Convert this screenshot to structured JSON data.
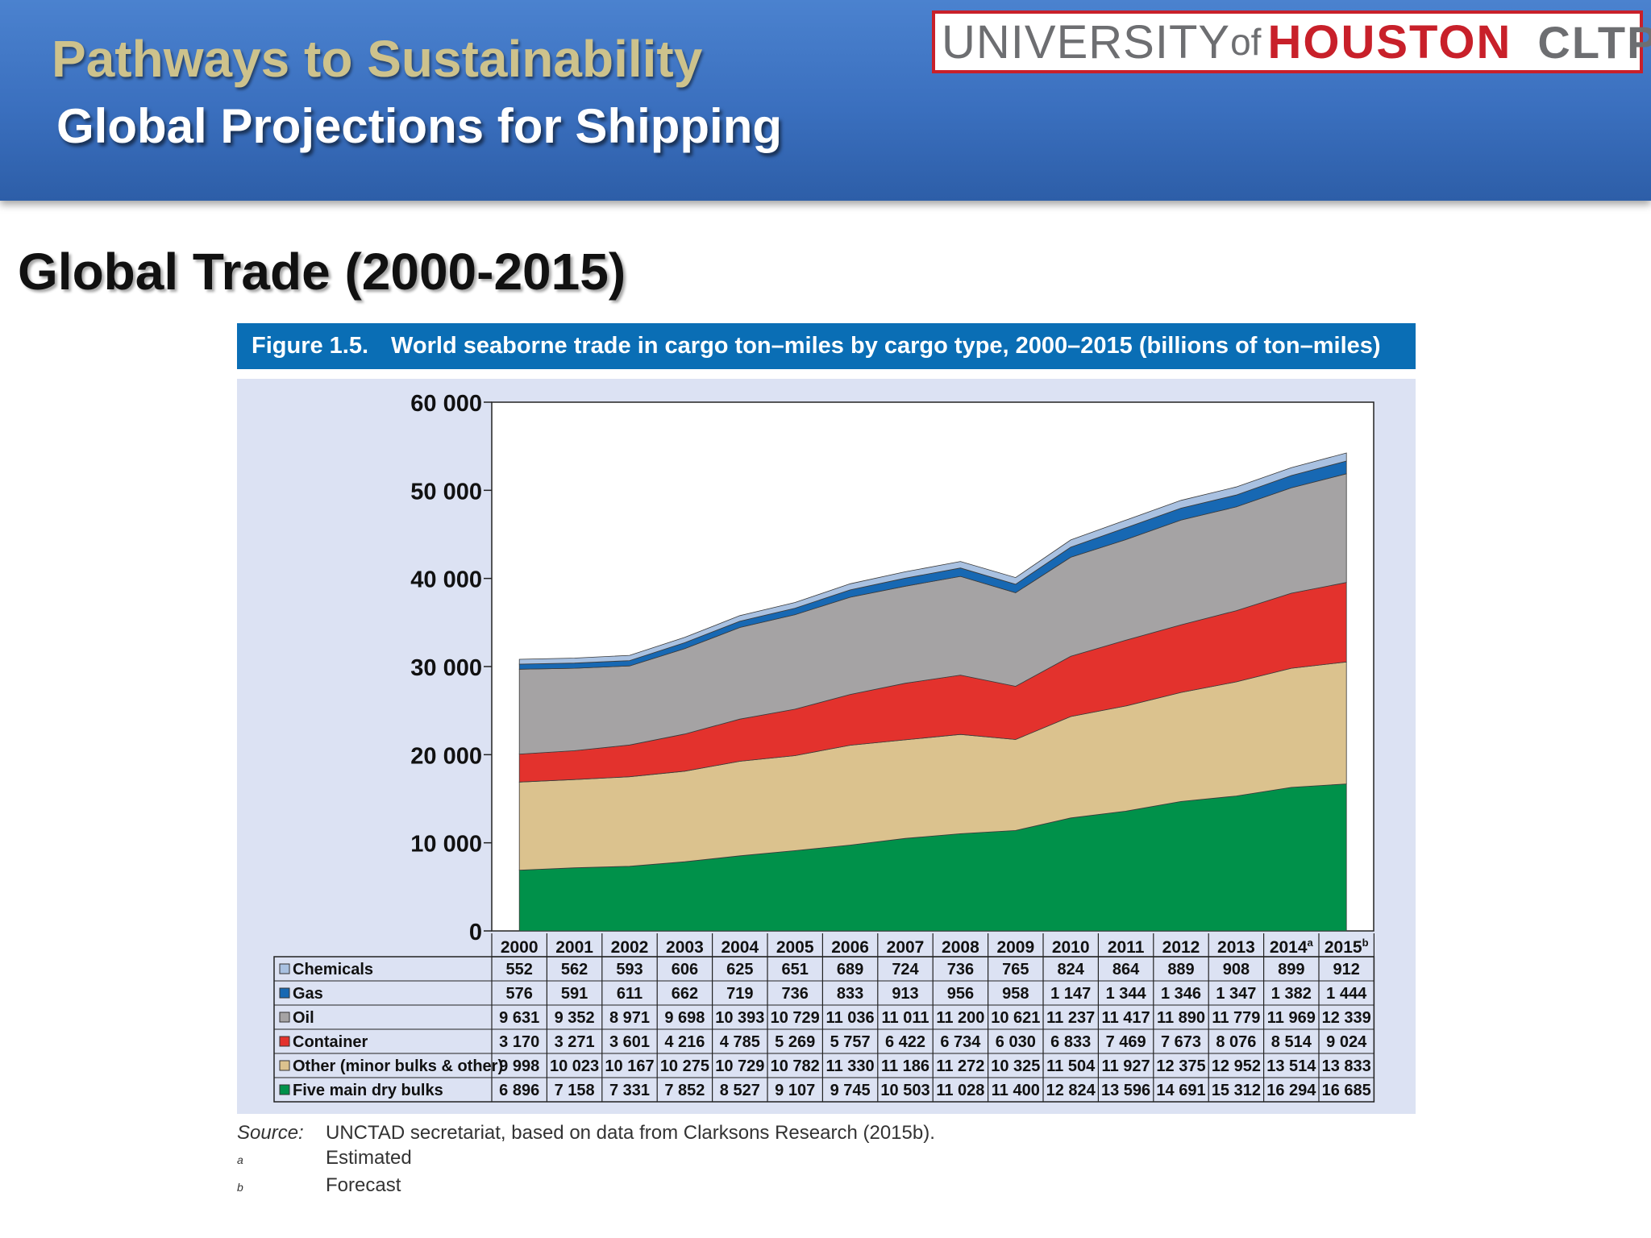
{
  "header": {
    "subtitle": "Pathways to Sustainability",
    "title": "Global Projections for Shipping"
  },
  "logo": {
    "university": "UNIVERSITY",
    "of": "of",
    "houston": "HOUSTON",
    "unit": "CLTP",
    "colors": {
      "red": "#c8202a",
      "gray": "#6d6e71"
    }
  },
  "slide": {
    "heading": "Global Trade (2000-2015)"
  },
  "figure": {
    "number": "Figure 1.5.",
    "title": "World seaborne trade in cargo ton–miles by cargo type, 2000–2015 (billions of ton–miles)"
  },
  "chart_data": {
    "type": "area",
    "stacked": true,
    "ylim": [
      0,
      60000
    ],
    "y_ticks": [
      "0",
      "10 000",
      "20 000",
      "30 000",
      "40 000",
      "50 000",
      "60 000"
    ],
    "categories": [
      "2000",
      "2001",
      "2002",
      "2003",
      "2004",
      "2005",
      "2006",
      "2007",
      "2008",
      "2009",
      "2010",
      "2011",
      "2012",
      "2013",
      "2014",
      "2015"
    ],
    "category_footnotes": [
      "",
      "",
      "",
      "",
      "",
      "",
      "",
      "",
      "",
      "",
      "",
      "",
      "",
      "",
      "a",
      "b"
    ],
    "grid": false,
    "legend_placement": "table-left",
    "series": [
      {
        "name": "Five main dry bulks",
        "color": "#00914a",
        "values": [
          6896,
          7158,
          7331,
          7852,
          8527,
          9107,
          9745,
          10503,
          11028,
          11400,
          12824,
          13596,
          14691,
          15312,
          16294,
          16685
        ],
        "labels": [
          "6 896",
          "7 158",
          "7 331",
          "7 852",
          "8 527",
          "9 107",
          "9 745",
          "10 503",
          "11 028",
          "11 400",
          "12 824",
          "13 596",
          "14 691",
          "15 312",
          "16 294",
          "16 685"
        ]
      },
      {
        "name": "Other (minor bulks & other)",
        "color": "#dbc28e",
        "values": [
          9998,
          10023,
          10167,
          10275,
          10729,
          10782,
          11330,
          11186,
          11272,
          10325,
          11504,
          11927,
          12375,
          12952,
          13514,
          13833
        ],
        "labels": [
          "9 998",
          "10 023",
          "10 167",
          "10 275",
          "10 729",
          "10 782",
          "11 330",
          "11 186",
          "11 272",
          "10 325",
          "11 504",
          "11 927",
          "12 375",
          "12 952",
          "13 514",
          "13 833"
        ]
      },
      {
        "name": "Container",
        "color": "#e3322d",
        "values": [
          3170,
          3271,
          3601,
          4216,
          4785,
          5269,
          5757,
          6422,
          6734,
          6030,
          6833,
          7469,
          7673,
          8076,
          8514,
          9024
        ],
        "labels": [
          "3 170",
          "3 271",
          "3 601",
          "4 216",
          "4 785",
          "5 269",
          "5 757",
          "6 422",
          "6 734",
          "6 030",
          "6 833",
          "7 469",
          "7 673",
          "8 076",
          "8 514",
          "9 024"
        ]
      },
      {
        "name": "Oil",
        "color": "#a5a3a4",
        "values": [
          9631,
          9352,
          8971,
          9698,
          10393,
          10729,
          11036,
          11011,
          11200,
          10621,
          11237,
          11417,
          11890,
          11779,
          11969,
          12339
        ],
        "labels": [
          "9 631",
          "9 352",
          "8 971",
          "9 698",
          "10 393",
          "10 729",
          "11 036",
          "11 011",
          "11 200",
          "10 621",
          "11 237",
          "11 417",
          "11 890",
          "11 779",
          "11 969",
          "12 339"
        ]
      },
      {
        "name": "Gas",
        "color": "#1768b3",
        "values": [
          576,
          591,
          611,
          662,
          719,
          736,
          833,
          913,
          956,
          958,
          1147,
          1344,
          1346,
          1347,
          1382,
          1444
        ],
        "labels": [
          "576",
          "591",
          "611",
          "662",
          "719",
          "736",
          "833",
          "913",
          "956",
          "958",
          "1 147",
          "1 344",
          "1 346",
          "1 347",
          "1 382",
          "1 444"
        ]
      },
      {
        "name": "Chemicals",
        "color": "#a9c1e1",
        "values": [
          552,
          562,
          593,
          606,
          625,
          651,
          689,
          724,
          736,
          765,
          824,
          864,
          889,
          908,
          899,
          912
        ],
        "labels": [
          "552",
          "562",
          "593",
          "606",
          "625",
          "651",
          "689",
          "724",
          "736",
          "765",
          "824",
          "864",
          "889",
          "908",
          "899",
          "912"
        ]
      }
    ],
    "table_row_order": [
      "Chemicals",
      "Gas",
      "Oil",
      "Container",
      "Other (minor bulks & other)",
      "Five main dry bulks"
    ]
  },
  "source": {
    "label": "Source:",
    "text": "UNCTAD secretariat, based on data from Clarksons Research (2015b).",
    "notes": [
      {
        "mark": "a",
        "text": "Estimated"
      },
      {
        "mark": "b",
        "text": "Forecast"
      }
    ]
  }
}
